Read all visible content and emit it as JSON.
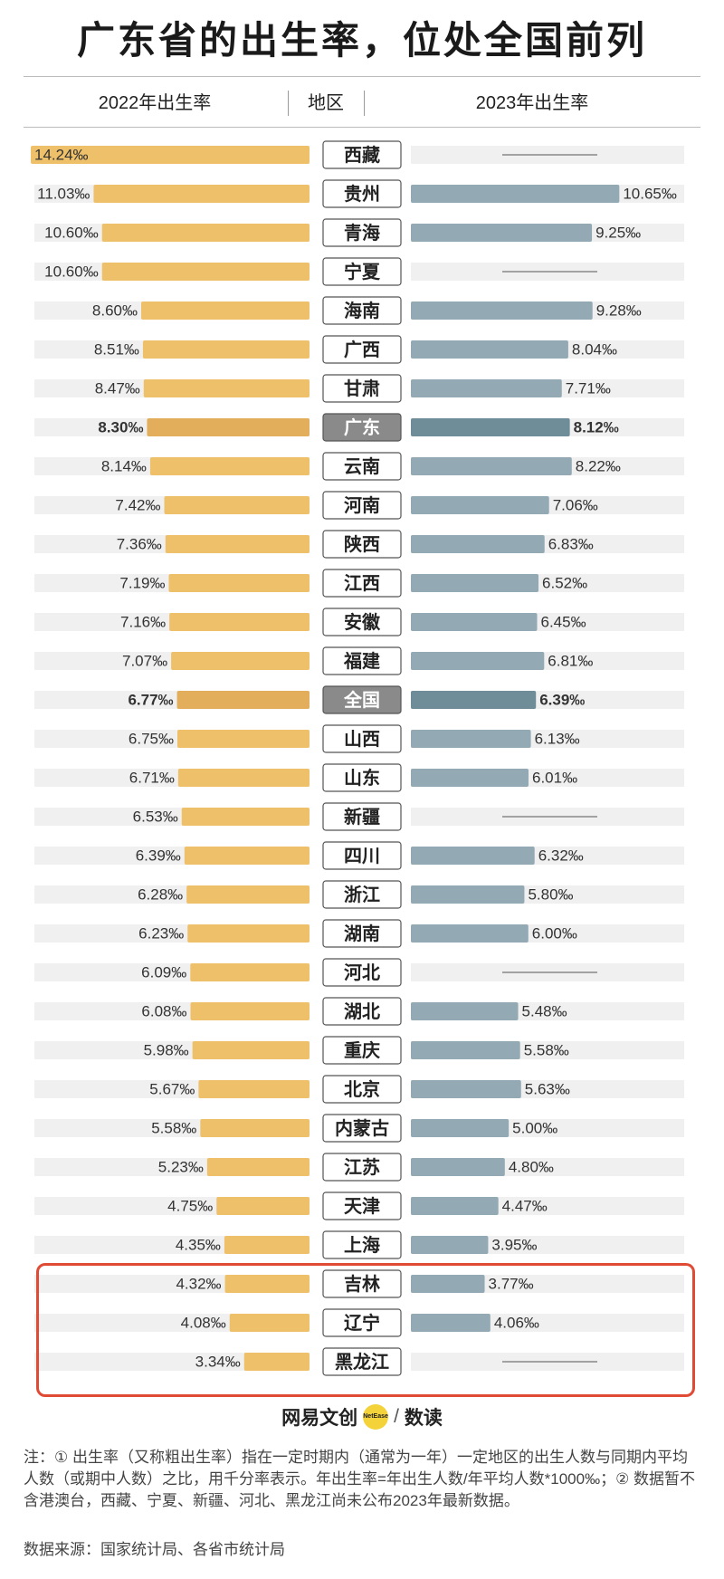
{
  "title": "广东省的出生率，位处全国前列",
  "headers": {
    "left": "2022年出生率",
    "center": "地区",
    "right": "2023年出生率"
  },
  "colors": {
    "bar_2022": "#efc06a",
    "bar_2022_highlight": "#e2ae5c",
    "bar_2023": "#93a9b4",
    "bar_2023_highlight": "#6f8d99",
    "track": "#f0f0f0",
    "region_box_border": "#555555",
    "region_box_highlight": "#8a8a8a",
    "frame": "#e04b35"
  },
  "chart_data": {
    "type": "bar",
    "layout": "butterfly",
    "unit": "‰",
    "categories": [
      "西藏",
      "贵州",
      "青海",
      "宁夏",
      "海南",
      "广西",
      "甘肃",
      "广东",
      "云南",
      "河南",
      "陕西",
      "江西",
      "安徽",
      "福建",
      "全国",
      "山西",
      "山东",
      "新疆",
      "四川",
      "浙江",
      "湖南",
      "河北",
      "湖北",
      "重庆",
      "北京",
      "内蒙古",
      "江苏",
      "天津",
      "上海",
      "吉林",
      "辽宁",
      "黑龙江"
    ],
    "series": [
      {
        "name": "2022年出生率",
        "values": [
          14.24,
          11.03,
          10.6,
          10.6,
          8.6,
          8.51,
          8.47,
          8.3,
          8.14,
          7.42,
          7.36,
          7.19,
          7.16,
          7.07,
          6.77,
          6.75,
          6.71,
          6.53,
          6.39,
          6.28,
          6.23,
          6.09,
          6.08,
          5.98,
          5.67,
          5.58,
          5.23,
          4.75,
          4.35,
          4.32,
          4.08,
          3.34
        ],
        "labels": [
          "14.24‰",
          "11.03‰",
          "10.60‰",
          "10.60‰",
          "8.60‰",
          "8.51‰",
          "8.47‰",
          "8.30‰",
          "8.14‰",
          "7.42‰",
          "7.36‰",
          "7.19‰",
          "7.16‰",
          "7.07‰",
          "6.77‰",
          "6.75‰",
          "6.71‰",
          "6.53‰",
          "6.39‰",
          "6.28‰",
          "6.23‰",
          "6.09‰",
          "6.08‰",
          "5.98‰",
          "5.67‰",
          "5.58‰",
          "5.23‰",
          "4.75‰",
          "4.35‰",
          "4.32‰",
          "4.08‰",
          "3.34‰"
        ]
      },
      {
        "name": "2023年出生率",
        "values": [
          null,
          10.65,
          9.25,
          null,
          9.28,
          8.04,
          7.71,
          8.12,
          8.22,
          7.06,
          6.83,
          6.52,
          6.45,
          6.81,
          6.39,
          6.13,
          6.01,
          null,
          6.32,
          5.8,
          6.0,
          null,
          5.48,
          5.58,
          5.63,
          5.0,
          4.8,
          4.47,
          3.95,
          3.77,
          4.06,
          null
        ],
        "labels": [
          "",
          "10.65‰",
          "9.25‰",
          "",
          "9.28‰",
          "8.04‰",
          "7.71‰",
          "8.12‰",
          "8.22‰",
          "7.06‰",
          "6.83‰",
          "6.52‰",
          "6.45‰",
          "6.81‰",
          "6.39‰",
          "6.13‰",
          "6.01‰",
          "",
          "6.32‰",
          "5.80‰",
          "6.00‰",
          "",
          "5.48‰",
          "5.58‰",
          "5.63‰",
          "5.00‰",
          "4.80‰",
          "4.47‰",
          "3.95‰",
          "3.77‰",
          "4.06‰",
          ""
        ]
      }
    ],
    "highlighted": [
      "广东",
      "全国"
    ],
    "framed": [
      "吉林",
      "辽宁",
      "黑龙江"
    ],
    "xlim": [
      0,
      14.24
    ]
  },
  "logo": {
    "brand": "网易文创",
    "badge": "NetEase",
    "separator": "/",
    "sub": "数读"
  },
  "note": "注：① 出生率（又称粗出生率）指在一定时期内（通常为一年）一定地区的出生人数与同期内平均人数（或期中人数）之比，用千分率表示。年出生率=年出生人数/年平均人数*1000‰；② 数据暂不含港澳台，西藏、宁夏、新疆、河北、黑龙江尚未公布2023年最新数据。",
  "source": "数据来源：国家统计局、各省市统计局"
}
